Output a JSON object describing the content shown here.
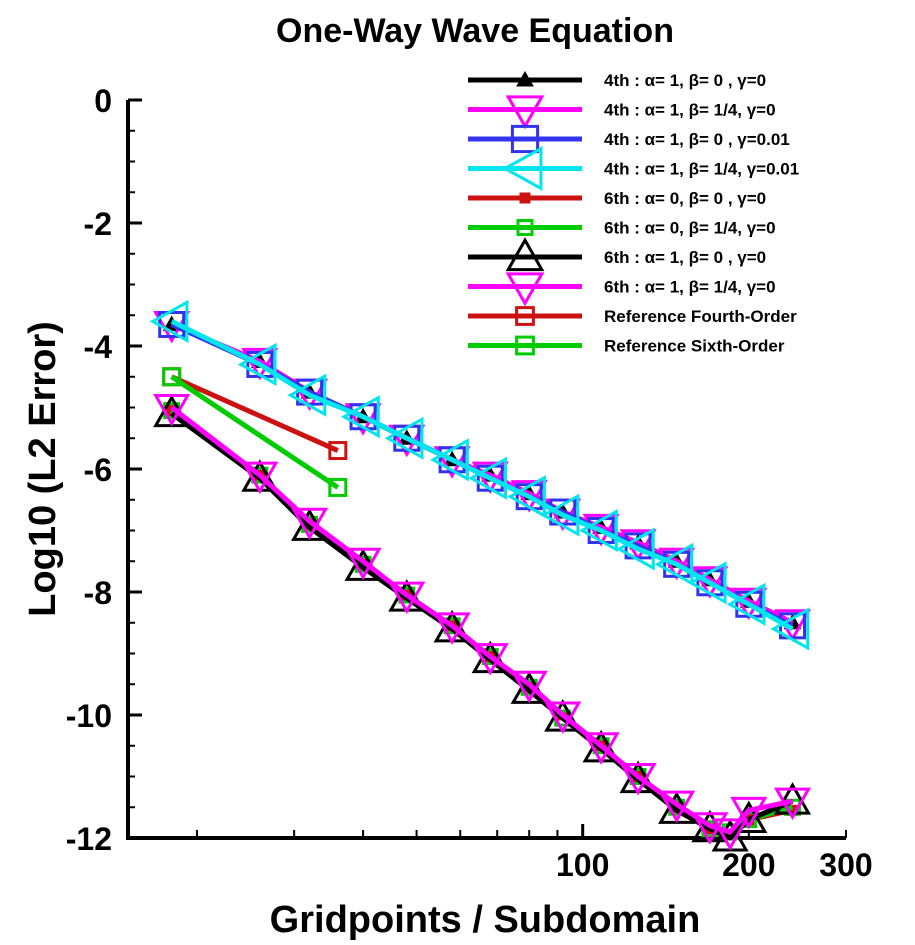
{
  "chart_data": {
    "type": "line",
    "title": "One-Way Wave Equation",
    "xlabel": "Gridpoints / Subdomain",
    "ylabel": "Log10 (L2 Error)",
    "xscale": "log",
    "xlim": [
      15,
      300
    ],
    "ylim": [
      -12,
      0
    ],
    "yticks": [
      0,
      -2,
      -4,
      -6,
      -8,
      -10,
      -12
    ],
    "ytick_labels": [
      "0",
      "-2",
      "-4",
      "-6",
      "-8",
      "-10",
      "-12"
    ],
    "xtick_labels": [
      {
        "value": 100,
        "label": "100"
      },
      {
        "value": 200,
        "label": "200"
      },
      {
        "value": 300,
        "label": "300"
      }
    ],
    "grid": false,
    "legend_position": "top-right",
    "series": [
      {
        "name": "4th : α= 1, β= 0 , γ=0",
        "color": "#000000",
        "marker": "triangle-up-filled",
        "x": [
          18,
          26,
          32,
          40,
          48,
          58,
          68,
          80,
          92,
          108,
          126,
          148,
          170,
          200,
          240
        ],
        "y": [
          -3.65,
          -4.25,
          -4.75,
          -5.15,
          -5.5,
          -5.85,
          -6.1,
          -6.4,
          -6.7,
          -6.95,
          -7.2,
          -7.5,
          -7.8,
          -8.15,
          -8.5
        ]
      },
      {
        "name": "4th : α= 1, β= 1/4, γ=0",
        "color": "#ff00ff",
        "marker": "triangle-down",
        "x": [
          18,
          26,
          32,
          40,
          48,
          58,
          68,
          80,
          92,
          108,
          126,
          148,
          170,
          200,
          240
        ],
        "y": [
          -3.65,
          -4.25,
          -4.75,
          -5.15,
          -5.5,
          -5.85,
          -6.1,
          -6.4,
          -6.7,
          -6.95,
          -7.2,
          -7.5,
          -7.8,
          -8.15,
          -8.5
        ]
      },
      {
        "name": "4th : α= 1, β= 0 , γ=0.01",
        "color": "#3333ee",
        "marker": "square",
        "x": [
          18,
          26,
          32,
          40,
          48,
          58,
          68,
          80,
          92,
          108,
          126,
          148,
          170,
          200,
          240
        ],
        "y": [
          -3.65,
          -4.3,
          -4.75,
          -5.15,
          -5.5,
          -5.85,
          -6.15,
          -6.45,
          -6.7,
          -7.0,
          -7.25,
          -7.55,
          -7.85,
          -8.2,
          -8.55
        ]
      },
      {
        "name": "4th : α= 1, β= 1/4, γ=0.01",
        "color": "#00e5ee",
        "marker": "triangle-left",
        "x": [
          18,
          26,
          32,
          40,
          48,
          58,
          68,
          80,
          92,
          108,
          126,
          148,
          170,
          200,
          240
        ],
        "y": [
          -3.6,
          -4.3,
          -4.8,
          -5.15,
          -5.5,
          -5.85,
          -6.15,
          -6.45,
          -6.75,
          -7.0,
          -7.3,
          -7.55,
          -7.85,
          -8.2,
          -8.6
        ]
      },
      {
        "name": "6th : α= 0, β= 0 , γ=0",
        "color": "#cc1111",
        "marker": "square-small-filled",
        "x": [
          18,
          26,
          32,
          40,
          48,
          58,
          68,
          80,
          92,
          108,
          126,
          148,
          170,
          185,
          200,
          240
        ],
        "y": [
          -5.05,
          -6.1,
          -6.9,
          -7.55,
          -8.05,
          -8.55,
          -9.05,
          -9.55,
          -10.0,
          -10.5,
          -11.0,
          -11.5,
          -11.85,
          -11.95,
          -11.7,
          -11.55
        ]
      },
      {
        "name": "6th : α= 0, β= 1/4, γ=0",
        "color": "#00cc00",
        "marker": "square-small",
        "x": [
          18,
          26,
          32,
          40,
          48,
          58,
          68,
          80,
          92,
          108,
          126,
          148,
          170,
          185,
          200,
          240
        ],
        "y": [
          -5.05,
          -6.1,
          -6.9,
          -7.55,
          -8.05,
          -8.55,
          -9.05,
          -9.55,
          -10.05,
          -10.5,
          -11.0,
          -11.5,
          -11.85,
          -11.9,
          -11.7,
          -11.5
        ]
      },
      {
        "name": "6th : α= 1, β= 0 , γ=0",
        "color": "#000000",
        "marker": "triangle-up",
        "x": [
          18,
          26,
          32,
          40,
          48,
          58,
          68,
          80,
          92,
          108,
          126,
          148,
          170,
          185,
          200,
          240
        ],
        "y": [
          -5.1,
          -6.15,
          -6.95,
          -7.6,
          -8.1,
          -8.6,
          -9.1,
          -9.6,
          -10.05,
          -10.55,
          -11.05,
          -11.55,
          -11.85,
          -12.0,
          -11.7,
          -11.4
        ]
      },
      {
        "name": "6th : α= 1, β= 1/4, γ=0",
        "color": "#ff00ff",
        "marker": "triangle-down",
        "x": [
          18,
          26,
          32,
          40,
          48,
          58,
          68,
          80,
          92,
          108,
          126,
          148,
          170,
          185,
          200,
          240
        ],
        "y": [
          -5.0,
          -6.1,
          -6.85,
          -7.5,
          -8.05,
          -8.55,
          -9.05,
          -9.5,
          -10.0,
          -10.5,
          -11.0,
          -11.45,
          -11.8,
          -11.9,
          -11.55,
          -11.4
        ]
      },
      {
        "name": "Reference Fourth-Order",
        "color": "#cc1111",
        "marker": "square-open",
        "x": [
          18,
          36
        ],
        "y": [
          -4.5,
          -5.7
        ]
      },
      {
        "name": "Reference Sixth-Order",
        "color": "#00cc00",
        "marker": "square-open",
        "x": [
          18,
          36
        ],
        "y": [
          -4.5,
          -6.3
        ]
      }
    ]
  }
}
